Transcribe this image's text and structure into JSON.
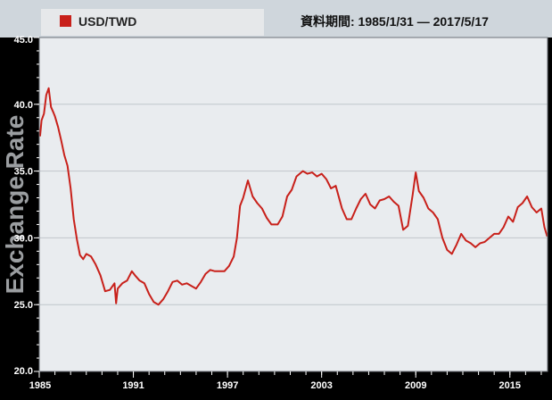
{
  "header": {
    "legend_label": "USD/TWD",
    "date_range": "資料期間: 1985/1/31 — 2017/5/17"
  },
  "colors": {
    "background": "#000000",
    "panel": "#cfd6dc",
    "plot_bg": "#e9ecef",
    "grid": "#c0c6cc",
    "line": "#c8201a",
    "legend_box": "#e6e8ea",
    "axis_text": "#ffffff"
  },
  "chart_data": {
    "type": "line",
    "title": "",
    "xlabel": "",
    "ylabel": "Exchange Rate",
    "xlim": [
      1985.0,
      2017.4
    ],
    "ylim": [
      20.0,
      45.0
    ],
    "x_ticks": [
      1985,
      1991,
      1997,
      2003,
      2009,
      2015
    ],
    "x_tick_labels": [
      "1985",
      "1991",
      "1997",
      "2003",
      "2009",
      "2015"
    ],
    "y_ticks": [
      20.0,
      25.0,
      30.0,
      35.0,
      40.0,
      45.0
    ],
    "y_tick_labels": [
      "20.0",
      "25.0",
      "30.0",
      "35.0",
      "40.0",
      "45.0"
    ],
    "grid": true,
    "legend": "top-left",
    "series": [
      {
        "name": "USD/TWD",
        "x": [
          1985.05,
          1985.15,
          1985.3,
          1985.45,
          1985.6,
          1985.75,
          1985.9,
          1986.0,
          1986.2,
          1986.4,
          1986.6,
          1986.8,
          1987.0,
          1987.2,
          1987.4,
          1987.6,
          1987.8,
          1988.0,
          1988.3,
          1988.6,
          1988.9,
          1989.2,
          1989.5,
          1989.8,
          1989.9,
          1990.0,
          1990.3,
          1990.6,
          1990.9,
          1991.1,
          1991.4,
          1991.7,
          1992.0,
          1992.3,
          1992.6,
          1992.9,
          1993.2,
          1993.5,
          1993.8,
          1994.1,
          1994.4,
          1994.7,
          1995.0,
          1995.3,
          1995.6,
          1995.9,
          1996.2,
          1996.5,
          1996.8,
          1997.1,
          1997.4,
          1997.6,
          1997.8,
          1998.0,
          1998.3,
          1998.6,
          1998.9,
          1999.2,
          1999.5,
          1999.8,
          2000.2,
          2000.5,
          2000.8,
          2001.1,
          2001.4,
          2001.8,
          2002.1,
          2002.4,
          2002.7,
          2003.0,
          2003.3,
          2003.6,
          2003.9,
          2004.3,
          2004.6,
          2004.9,
          2005.2,
          2005.5,
          2005.8,
          2006.1,
          2006.4,
          2006.7,
          2007.0,
          2007.3,
          2007.6,
          2007.9,
          2008.2,
          2008.5,
          2008.8,
          2009.0,
          2009.2,
          2009.5,
          2009.8,
          2010.1,
          2010.4,
          2010.7,
          2011.0,
          2011.3,
          2011.6,
          2011.9,
          2012.2,
          2012.5,
          2012.8,
          2013.1,
          2013.4,
          2013.7,
          2014.0,
          2014.3,
          2014.6,
          2014.9,
          2015.2,
          2015.5,
          2015.8,
          2016.1,
          2016.4,
          2016.7,
          2017.0,
          2017.2,
          2017.38
        ],
        "values": [
          37.6,
          38.8,
          39.3,
          40.7,
          41.2,
          39.8,
          39.4,
          39.1,
          38.3,
          37.3,
          36.2,
          35.4,
          33.7,
          31.4,
          29.9,
          28.7,
          28.4,
          28.8,
          28.6,
          28.0,
          27.2,
          26.0,
          26.1,
          26.6,
          25.1,
          26.2,
          26.6,
          26.8,
          27.5,
          27.2,
          26.8,
          26.6,
          25.8,
          25.2,
          25.0,
          25.4,
          26.0,
          26.7,
          26.8,
          26.5,
          26.6,
          26.4,
          26.2,
          26.7,
          27.3,
          27.6,
          27.5,
          27.5,
          27.5,
          27.9,
          28.6,
          30.0,
          32.4,
          33.0,
          34.3,
          33.1,
          32.6,
          32.2,
          31.5,
          31.0,
          31.0,
          31.6,
          33.1,
          33.6,
          34.6,
          35.0,
          34.8,
          34.9,
          34.6,
          34.8,
          34.4,
          33.7,
          33.9,
          32.2,
          31.4,
          31.4,
          32.2,
          32.9,
          33.3,
          32.5,
          32.2,
          32.8,
          32.9,
          33.1,
          32.7,
          32.4,
          30.6,
          30.9,
          33.2,
          34.9,
          33.5,
          33.0,
          32.2,
          31.9,
          31.4,
          30.0,
          29.1,
          28.8,
          29.5,
          30.3,
          29.8,
          29.6,
          29.3,
          29.6,
          29.7,
          30.0,
          30.3,
          30.3,
          30.8,
          31.6,
          31.2,
          32.3,
          32.6,
          33.1,
          32.3,
          31.9,
          32.2,
          30.8,
          30.1
        ]
      }
    ]
  }
}
